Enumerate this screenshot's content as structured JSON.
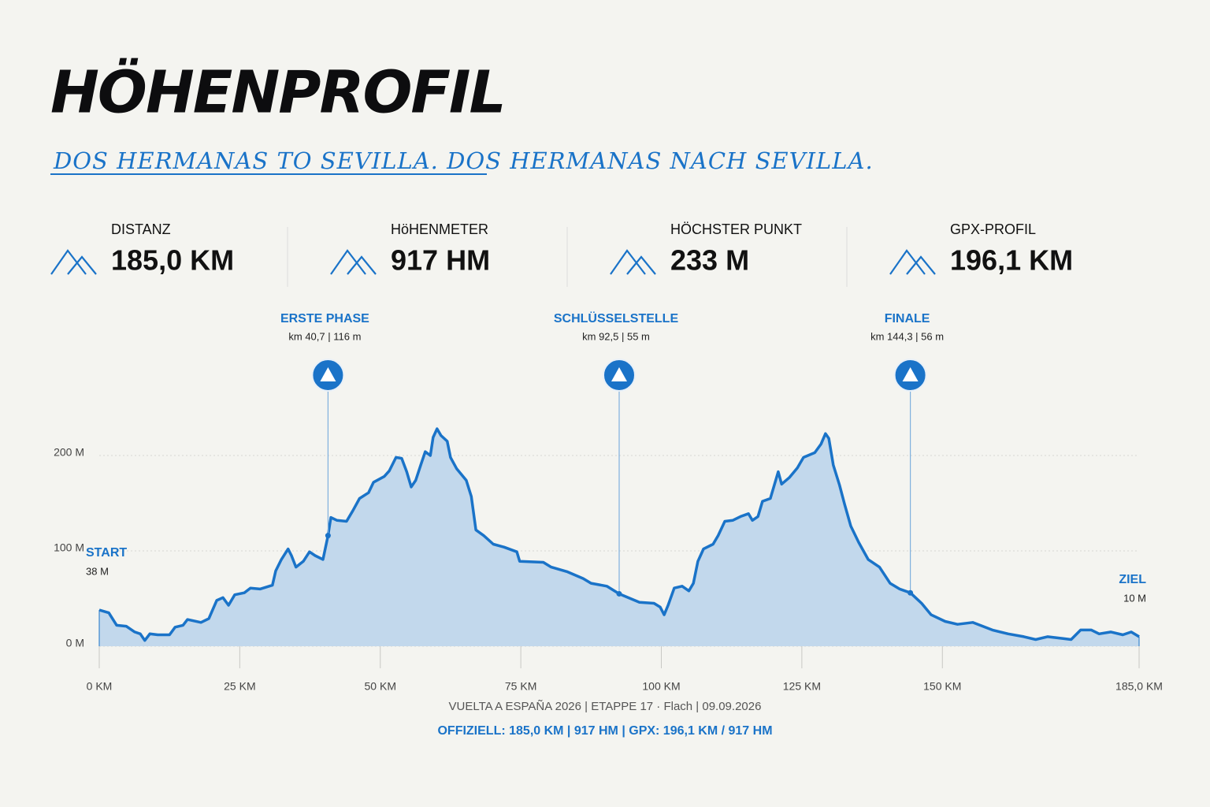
{
  "header": {
    "title": "HÖHENPROFIL",
    "subtitle": "DOS HERMANAS TO SEVILLA. DOS HERMANAS NACH SEVILLA."
  },
  "stats": [
    {
      "label": "DISTANZ",
      "value": "185,0 KM"
    },
    {
      "label": "HöHENMETER",
      "value": "917 HM"
    },
    {
      "label": "HÖCHSTER PUNKT",
      "value": "233 M"
    },
    {
      "label": "GPX-PROFIL",
      "value": "196,1 KM"
    }
  ],
  "chart_data": {
    "type": "area",
    "color": "#1a73c8",
    "fill": "#c2d8ec",
    "grid": true,
    "xlim": [
      0,
      185
    ],
    "ylim": [
      0,
      250
    ],
    "xticks": [
      {
        "value": 0,
        "label": "0 KM"
      },
      {
        "value": 25,
        "label": "25 KM"
      },
      {
        "value": 50,
        "label": "50 KM"
      },
      {
        "value": 75,
        "label": "75 KM"
      },
      {
        "value": 100,
        "label": "100 KM"
      },
      {
        "value": 125,
        "label": "125 KM"
      },
      {
        "value": 150,
        "label": "150 KM"
      },
      {
        "value": 185,
        "label": "185,0 KM"
      }
    ],
    "yticks": [
      {
        "value": 0,
        "label": "0 M"
      },
      {
        "value": 100,
        "label": "100 M"
      },
      {
        "value": 200,
        "label": "200 M"
      }
    ],
    "x": [
      0,
      1.7,
      3.1,
      4.8,
      6.3,
      7.3,
      8.1,
      9.0,
      10.4,
      12.5,
      13.5,
      14.9,
      15.7,
      18.1,
      19.5,
      20.9,
      22.0,
      23.0,
      24.1,
      25.8,
      26.9,
      28.6,
      30.8,
      31.4,
      32.4,
      33.6,
      34.2,
      35.0,
      36.3,
      37.4,
      38.4,
      39.8,
      40.7,
      41.2,
      42.3,
      44.0,
      45.1,
      46.3,
      47.9,
      48.8,
      50.7,
      51.6,
      52.8,
      53.8,
      54.7,
      55.5,
      56.3,
      57.2,
      58.0,
      58.9,
      59.4,
      60.1,
      60.8,
      61.9,
      62.5,
      63.6,
      65.3,
      66.2,
      67.0,
      68.4,
      70.1,
      72.0,
      74.3,
      74.8,
      79.0,
      80.4,
      83.3,
      86.1,
      87.5,
      90.3,
      92.5,
      94.5,
      96.1,
      98.7,
      99.8,
      100.5,
      101.2,
      102.3,
      103.7,
      104.9,
      105.7,
      106.5,
      107.5,
      109.2,
      110.1,
      111.3,
      112.7,
      114.1,
      115.5,
      116.2,
      117.2,
      118.0,
      119.4,
      120.8,
      121.4,
      122.8,
      124.2,
      125.3,
      127.3,
      128.4,
      129.2,
      129.8,
      130.6,
      131.7,
      132.6,
      133.7,
      135.1,
      136.8,
      138.8,
      140.7,
      142.4,
      144.3,
      146.3,
      148.0,
      150.5,
      152.7,
      155.4,
      158.9,
      161.7,
      164.5,
      166.6,
      168.7,
      171.5,
      172.9,
      174.6,
      176.5,
      177.9,
      180.0,
      182.1,
      183.6,
      185.0
    ],
    "values": [
      38,
      35,
      22,
      21,
      15,
      13,
      6,
      13,
      12,
      12,
      20,
      22,
      28,
      25,
      29,
      48,
      51,
      43,
      54,
      56,
      61,
      60,
      64,
      79,
      91,
      102,
      95,
      83,
      89,
      99,
      95,
      91,
      116,
      135,
      132,
      131,
      142,
      155,
      161,
      172,
      178,
      184,
      198,
      197,
      183,
      167,
      174,
      190,
      204,
      200,
      219,
      228,
      221,
      215,
      198,
      186,
      174,
      157,
      122,
      116,
      107,
      104,
      99,
      89,
      88,
      83,
      78,
      71,
      66,
      63,
      55,
      50,
      46,
      45,
      41,
      33,
      43,
      61,
      63,
      58,
      66,
      89,
      102,
      107,
      116,
      131,
      132,
      136,
      139,
      132,
      136,
      152,
      155,
      183,
      170,
      177,
      187,
      198,
      203,
      212,
      223,
      218,
      190,
      169,
      149,
      126,
      109,
      91,
      83,
      66,
      60,
      56,
      45,
      33,
      26,
      23,
      25,
      17,
      13,
      10,
      7,
      10,
      8,
      7,
      17,
      17,
      13,
      15,
      12,
      15,
      10
    ],
    "annotations": [
      {
        "label": "ERSTE PHASE",
        "text": "km 40,7 | 116 m",
        "x": 40.7,
        "y": 116
      },
      {
        "label": "SCHLÜSSELSTELLE",
        "text": "km 92,5 | 55 m",
        "x": 92.5,
        "y": 55
      },
      {
        "label": "FINALE",
        "text": "km 144,3 | 56 m",
        "x": 144.3,
        "y": 56
      }
    ],
    "start": {
      "label": "START",
      "value_label": "38 M"
    },
    "end": {
      "label": "ZIEL",
      "value_label": "10 M"
    }
  },
  "footer": {
    "line1": "VUELTA A ESPAÑA 2026 | ETAPPE 17 · Flach | 09.09.2026",
    "line2": "OFFIZIELL: 185,0 KM | 917 HM | GPX: 196,1 KM / 917 HM"
  }
}
